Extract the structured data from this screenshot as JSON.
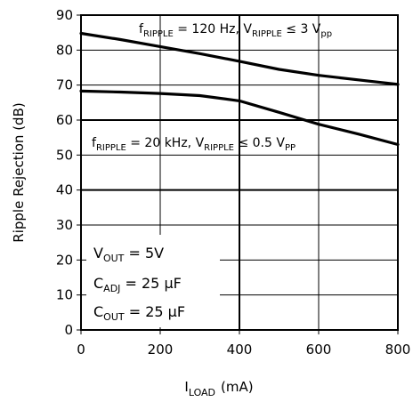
{
  "chart_data": {
    "type": "line",
    "title": "",
    "xlabel": {
      "main": "I",
      "sub": "LOAD",
      "unit": "(mA)"
    },
    "ylabel": "Ripple Rejection (dB)",
    "xlim": [
      0,
      800
    ],
    "ylim": [
      0,
      90
    ],
    "x_ticks": [
      "0",
      "200",
      "400",
      "600",
      "800"
    ],
    "y_ticks": [
      "0",
      "10",
      "20",
      "30",
      "40",
      "50",
      "60",
      "70",
      "80",
      "90"
    ],
    "grid": true,
    "series": [
      {
        "name": "fRIPPLE = 120 Hz, VRIPPLE ≤ 3 Vpp",
        "x": [
          0,
          100,
          200,
          300,
          400,
          500,
          600,
          700,
          800
        ],
        "y": [
          84.8,
          83.0,
          81.0,
          79.0,
          76.8,
          74.5,
          72.8,
          71.5,
          70.2
        ]
      },
      {
        "name": "fRIPPLE = 20 kHz, VRIPPLE ≤ 0.5 VPP",
        "x": [
          0,
          100,
          200,
          300,
          400,
          500,
          550,
          600,
          700,
          800
        ],
        "y": [
          68.3,
          68.0,
          67.6,
          67.0,
          65.5,
          62.2,
          60.5,
          58.8,
          56.0,
          53.0
        ]
      }
    ],
    "annotations": {
      "curve1": {
        "f": "f",
        "f_sub": "RIPPLE",
        "f_val": " = 120 Hz, V",
        "v_sub": "RIPPLE",
        "cond": " ≤ 3 V",
        "unit_sub": "pp"
      },
      "curve2": {
        "f": "f",
        "f_sub": "RIPPLE",
        "f_val": " = 20 kHz, V",
        "v_sub": "RIPPLE",
        "cond": " ≤ 0.5 V",
        "unit_sub": "PP"
      },
      "conditions": [
        {
          "main": "V",
          "sub": "OUT",
          "rest": " = 5V"
        },
        {
          "main": "C",
          "sub": "ADJ",
          "rest": " = 25 μF"
        },
        {
          "main": "C",
          "sub": "OUT",
          "rest": " = 25 μF"
        }
      ]
    }
  }
}
